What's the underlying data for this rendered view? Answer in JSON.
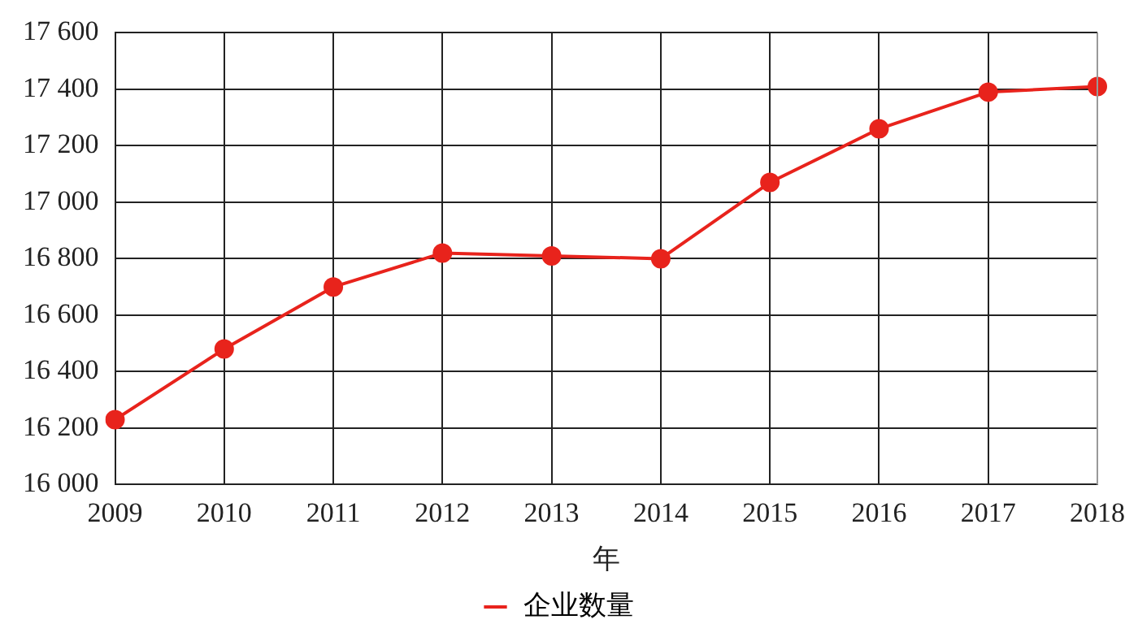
{
  "chart_data": {
    "type": "line",
    "xlabel": "年",
    "categories": [
      "2009",
      "2010",
      "2011",
      "2012",
      "2013",
      "2014",
      "2015",
      "2016",
      "2017",
      "2018"
    ],
    "series": [
      {
        "name": "企业数量",
        "color": "#e8231c",
        "values": [
          16230,
          16480,
          16700,
          16820,
          16810,
          16800,
          17070,
          17260,
          17390,
          17410
        ]
      }
    ],
    "ylim": [
      16000,
      17600
    ],
    "yticks": [
      {
        "value": 16000,
        "label": "16 000"
      },
      {
        "value": 16200,
        "label": "16 200"
      },
      {
        "value": 16400,
        "label": "16 400"
      },
      {
        "value": 16600,
        "label": "16 600"
      },
      {
        "value": 16800,
        "label": "16 800"
      },
      {
        "value": 17000,
        "label": "17 000"
      },
      {
        "value": 17200,
        "label": "17 200"
      },
      {
        "value": 17400,
        "label": "17 400"
      },
      {
        "value": 17600,
        "label": "17 600"
      }
    ],
    "grid": true,
    "legend": "bottom",
    "marker": "circle",
    "line_style": "solid"
  }
}
